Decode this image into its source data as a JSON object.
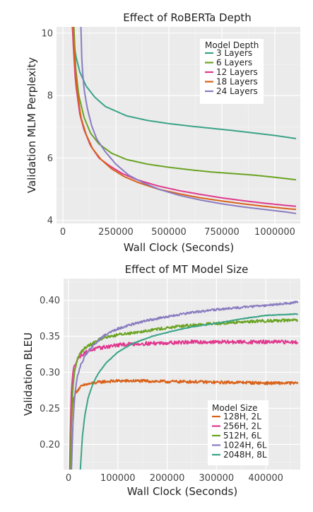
{
  "chart_data": [
    {
      "type": "line",
      "title": "Effect of RoBERTa Depth",
      "xlabel": "Wall Clock (Seconds)",
      "ylabel": "Validation MLM Perplexity",
      "xlim": [
        -30000,
        1120000
      ],
      "ylim": [
        3.9,
        10.2
      ],
      "xticks": [
        0,
        250000,
        500000,
        750000,
        1000000
      ],
      "yticks": [
        4,
        6,
        8,
        10
      ],
      "grid": true,
      "legend": {
        "title": "Model Depth",
        "placement": "top-right"
      },
      "series": [
        {
          "name": "3 Layers",
          "color": "#3aa387",
          "x": [
            45000,
            60000,
            80000,
            110000,
            150000,
            200000,
            300000,
            400000,
            500000,
            600000,
            700000,
            800000,
            900000,
            1000000,
            1100000
          ],
          "y": [
            10.2,
            9.3,
            8.75,
            8.3,
            7.95,
            7.65,
            7.35,
            7.2,
            7.1,
            7.02,
            6.95,
            6.88,
            6.8,
            6.72,
            6.62
          ]
        },
        {
          "name": "6 Layers",
          "color": "#6aa322",
          "x": [
            52000,
            60000,
            75000,
            100000,
            130000,
            170000,
            230000,
            300000,
            400000,
            500000,
            600000,
            700000,
            800000,
            900000,
            1000000,
            1100000
          ],
          "y": [
            10.2,
            8.9,
            8.0,
            7.3,
            6.8,
            6.45,
            6.15,
            5.95,
            5.8,
            5.7,
            5.62,
            5.55,
            5.5,
            5.45,
            5.38,
            5.3
          ]
        },
        {
          "name": "12 Layers",
          "color": "#e0388e",
          "x": [
            45000,
            50000,
            60000,
            80000,
            100000,
            130000,
            170000,
            220000,
            280000,
            350000,
            450000,
            550000,
            650000,
            750000,
            850000,
            950000,
            1050000,
            1100000
          ],
          "y": [
            10.2,
            9.5,
            8.4,
            7.4,
            6.9,
            6.4,
            6.0,
            5.75,
            5.5,
            5.3,
            5.1,
            4.95,
            4.83,
            4.72,
            4.63,
            4.55,
            4.48,
            4.45
          ]
        },
        {
          "name": "18 Layers",
          "color": "#d9621a",
          "x": [
            48000,
            55000,
            65000,
            85000,
            110000,
            140000,
            180000,
            230000,
            290000,
            360000,
            450000,
            550000,
            650000,
            750000,
            850000,
            950000,
            1050000,
            1100000
          ],
          "y": [
            10.2,
            9.2,
            8.3,
            7.3,
            6.75,
            6.3,
            5.95,
            5.65,
            5.4,
            5.2,
            5.0,
            4.85,
            4.72,
            4.62,
            4.53,
            4.45,
            4.38,
            4.35
          ]
        },
        {
          "name": "24 Layers",
          "color": "#8a7cc0",
          "x": [
            85000,
            90000,
            100000,
            115000,
            135000,
            160000,
            200000,
            250000,
            310000,
            380000,
            460000,
            550000,
            650000,
            750000,
            850000,
            950000,
            1050000,
            1100000
          ],
          "y": [
            10.2,
            9.0,
            8.2,
            7.6,
            7.05,
            6.6,
            6.2,
            5.8,
            5.45,
            5.2,
            4.98,
            4.8,
            4.65,
            4.53,
            4.43,
            4.35,
            4.27,
            4.22
          ]
        }
      ]
    },
    {
      "type": "line",
      "title": "Effect of MT Model Size",
      "xlabel": "Wall Clock (Seconds)",
      "ylabel": "Validation BLEU",
      "xlim": [
        -10000,
        470000
      ],
      "ylim": [
        0.165,
        0.43
      ],
      "xticks": [
        0,
        100000,
        200000,
        300000,
        400000
      ],
      "yticks": [
        0.2,
        0.25,
        0.3,
        0.35,
        0.4
      ],
      "grid": true,
      "legend": {
        "title": "Model Size",
        "placement": "bottom-right"
      },
      "series": [
        {
          "name": "128H, 2L",
          "color": "#d9621a",
          "noise": 0.002,
          "x": [
            3000,
            5000,
            8000,
            12000,
            18000,
            25000,
            35000,
            50000,
            70000,
            100000,
            150000,
            200000,
            250000,
            300000,
            350000,
            400000,
            450000,
            465000
          ],
          "y": [
            0.165,
            0.22,
            0.255,
            0.268,
            0.275,
            0.28,
            0.283,
            0.285,
            0.287,
            0.288,
            0.288,
            0.287,
            0.287,
            0.286,
            0.286,
            0.285,
            0.285,
            0.285
          ]
        },
        {
          "name": "256H, 2L",
          "color": "#e0388e",
          "noise": 0.0025,
          "x": [
            2500,
            4000,
            6000,
            9000,
            13000,
            20000,
            30000,
            45000,
            65000,
            90000,
            120000,
            160000,
            200000,
            250000,
            300000,
            350000,
            400000,
            450000,
            465000
          ],
          "y": [
            0.165,
            0.23,
            0.275,
            0.3,
            0.312,
            0.32,
            0.326,
            0.331,
            0.334,
            0.337,
            0.339,
            0.34,
            0.341,
            0.342,
            0.342,
            0.342,
            0.342,
            0.342,
            0.342
          ]
        },
        {
          "name": "512H, 6L",
          "color": "#6aa322",
          "noise": 0.002,
          "x": [
            4000,
            6000,
            9000,
            13000,
            18000,
            25000,
            35000,
            50000,
            70000,
            100000,
            140000,
            180000,
            230000,
            280000,
            330000,
            380000,
            430000,
            465000
          ],
          "y": [
            0.165,
            0.24,
            0.28,
            0.303,
            0.318,
            0.328,
            0.335,
            0.341,
            0.348,
            0.352,
            0.356,
            0.36,
            0.364,
            0.367,
            0.369,
            0.371,
            0.372,
            0.372
          ]
        },
        {
          "name": "1024H, 6L",
          "color": "#8a7cc0",
          "noise": 0.0015,
          "x": [
            6000,
            9000,
            13000,
            18000,
            25000,
            35000,
            50000,
            70000,
            90000,
            120000,
            160000,
            200000,
            250000,
            300000,
            350000,
            400000,
            450000,
            465000
          ],
          "y": [
            0.165,
            0.23,
            0.27,
            0.295,
            0.31,
            0.325,
            0.337,
            0.35,
            0.358,
            0.365,
            0.372,
            0.377,
            0.383,
            0.387,
            0.39,
            0.393,
            0.396,
            0.398
          ]
        },
        {
          "name": "2048H, 8L",
          "color": "#3aa387",
          "noise": 0.0004,
          "x": [
            24000,
            28000,
            33000,
            40000,
            50000,
            60000,
            75000,
            100000,
            130000,
            170000,
            210000,
            250000,
            300000,
            350000,
            400000,
            465000
          ],
          "y": [
            0.165,
            0.21,
            0.24,
            0.265,
            0.285,
            0.298,
            0.312,
            0.328,
            0.34,
            0.35,
            0.357,
            0.363,
            0.368,
            0.374,
            0.379,
            0.381
          ]
        }
      ]
    }
  ]
}
